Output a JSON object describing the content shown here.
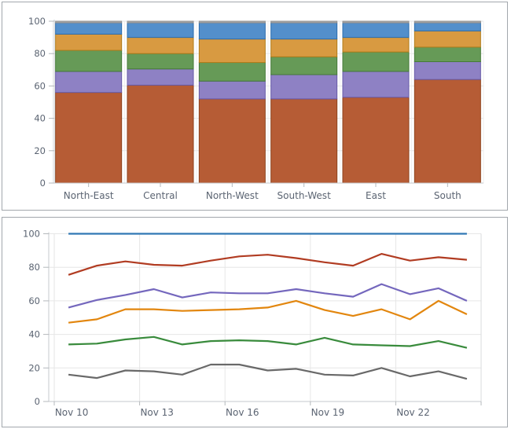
{
  "palette": {
    "grid": "#e6e6e6",
    "axis": "#c6c9cc",
    "tick": "#b4b8bc",
    "label": "#5b6472",
    "panel_border": "#a2a7ac",
    "background": "#ffffff"
  },
  "chart_data": [
    {
      "type": "bar",
      "stacked": true,
      "title": "",
      "xlabel": "",
      "ylabel": "",
      "ylim": [
        0,
        100
      ],
      "grid": "horizontal-and-vertical",
      "legend": "none",
      "y_tick_labels": [
        "0",
        "20",
        "40",
        "60",
        "80",
        "100"
      ],
      "y_tick_values": [
        0,
        20,
        40,
        60,
        80,
        100
      ],
      "categories": [
        "North-East",
        "Central",
        "North-West",
        "South-West",
        "East",
        "South"
      ],
      "series": [
        {
          "name": "rust-series",
          "color": "#b65c35",
          "border": "#8e421d",
          "values": [
            56,
            60.5,
            52,
            52,
            53,
            64
          ]
        },
        {
          "name": "purple-series",
          "color": "#8e81c4",
          "border": "#675aa8",
          "values": [
            13,
            10,
            11,
            15,
            16,
            11
          ]
        },
        {
          "name": "green-series",
          "color": "#669a57",
          "border": "#457a38",
          "values": [
            13,
            9.5,
            11.5,
            11,
            12,
            9
          ]
        },
        {
          "name": "amber-series",
          "color": "#d89a41",
          "border": "#b07c1a",
          "values": [
            10,
            10,
            14.5,
            11,
            9,
            10
          ]
        },
        {
          "name": "blue-series",
          "color": "#538fcb",
          "border": "#2b6cad",
          "values": [
            7,
            9,
            10,
            10,
            9,
            5
          ]
        },
        {
          "name": "gray-series",
          "color": "#a9a9a9",
          "border": "#8e8e8e",
          "values": [
            1,
            1,
            1,
            1,
            1,
            1
          ]
        }
      ]
    },
    {
      "type": "line",
      "title": "",
      "xlabel": "",
      "ylabel": "",
      "ylim": [
        0,
        100
      ],
      "grid": "horizontal-and-vertical",
      "legend": "none",
      "y_tick_labels": [
        "0",
        "20",
        "40",
        "60",
        "80",
        "100"
      ],
      "y_tick_values": [
        0,
        20,
        40,
        60,
        80,
        100
      ],
      "point_count": 15,
      "x_tick_labels": [
        "Nov 10",
        "Nov 13",
        "Nov 16",
        "Nov 19",
        "Nov 22"
      ],
      "x_tick_point_indices": [
        0,
        3,
        6,
        9,
        12
      ],
      "series": [
        {
          "name": "gray-line",
          "color": "#696969",
          "values": [
            16,
            14,
            18.5,
            18,
            16,
            22,
            22,
            18.5,
            19.5,
            16,
            15.5,
            20,
            15,
            18,
            13.5
          ]
        },
        {
          "name": "green-line",
          "color": "#398b3c",
          "values": [
            34,
            34.5,
            37,
            38.5,
            34,
            36,
            36.5,
            36,
            34,
            38,
            34,
            33.5,
            33,
            36,
            32
          ]
        },
        {
          "name": "orange-line",
          "color": "#e2860e",
          "values": [
            47,
            49,
            55,
            55,
            54,
            54.5,
            55,
            56,
            60,
            54.5,
            51,
            55,
            49,
            60,
            52
          ]
        },
        {
          "name": "purple-line",
          "color": "#7467bd",
          "values": [
            56,
            60.5,
            63.5,
            67,
            62,
            65,
            64.5,
            64.5,
            67,
            64.5,
            62.5,
            70,
            64,
            67.5,
            60
          ]
        },
        {
          "name": "red-line",
          "color": "#b13c22",
          "values": [
            75.5,
            81,
            83.5,
            81.5,
            81,
            84,
            86.5,
            87.5,
            85.5,
            83,
            81,
            88,
            84,
            86,
            84.5
          ]
        },
        {
          "name": "blue-line",
          "color": "#3078b4",
          "values": [
            100,
            100,
            100,
            100,
            100,
            100,
            100,
            100,
            100,
            100,
            100,
            100,
            100,
            100,
            100
          ]
        }
      ]
    }
  ]
}
